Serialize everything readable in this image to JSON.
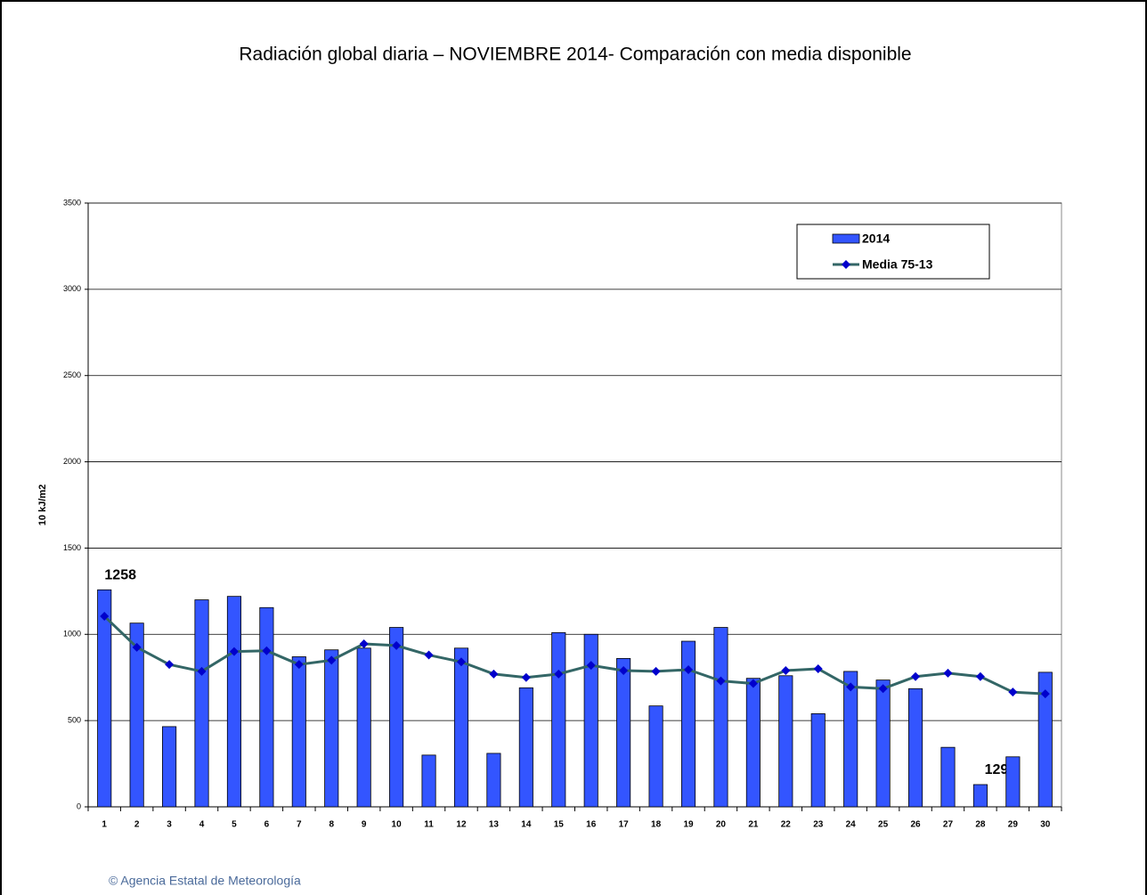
{
  "chart_data": {
    "type": "bar",
    "title": "Radiación global diaria –  NOVIEMBRE 2014- Comparación con media disponible",
    "y_label": "10 kJ/m2",
    "source": "© Agencia Estatal de Meteorología",
    "categories": [
      "1",
      "2",
      "3",
      "4",
      "5",
      "6",
      "7",
      "8",
      "9",
      "10",
      "11",
      "12",
      "13",
      "14",
      "15",
      "16",
      "17",
      "18",
      "19",
      "20",
      "21",
      "22",
      "23",
      "24",
      "25",
      "26",
      "27",
      "28",
      "29",
      "30"
    ],
    "series": [
      {
        "name": "2014",
        "type": "bar",
        "color": "#3355ff",
        "values": [
          1258,
          1065,
          465,
          1200,
          1220,
          1155,
          870,
          910,
          920,
          1040,
          300,
          920,
          310,
          690,
          1010,
          1000,
          860,
          585,
          960,
          1040,
          745,
          760,
          540,
          785,
          735,
          685,
          345,
          129,
          290,
          780
        ],
        "value_labels": [
          "1258",
          null,
          null,
          null,
          null,
          null,
          null,
          null,
          null,
          null,
          null,
          null,
          null,
          null,
          null,
          null,
          null,
          null,
          null,
          null,
          null,
          null,
          null,
          null,
          null,
          null,
          null,
          "129",
          null,
          null
        ]
      },
      {
        "name": "Media 75-13",
        "type": "line",
        "color": "#336666",
        "marker_color": "#0000cc",
        "values": [
          1105,
          925,
          825,
          785,
          900,
          905,
          825,
          850,
          945,
          935,
          880,
          840,
          770,
          750,
          770,
          820,
          790,
          785,
          795,
          730,
          715,
          790,
          800,
          695,
          685,
          755,
          775,
          755,
          665,
          655
        ]
      }
    ],
    "ylim": [
      0,
      3500
    ],
    "yticks": [
      0,
      500,
      1000,
      1500,
      2000,
      2500,
      3000,
      3500
    ],
    "grid": true,
    "legend": "upper right"
  }
}
